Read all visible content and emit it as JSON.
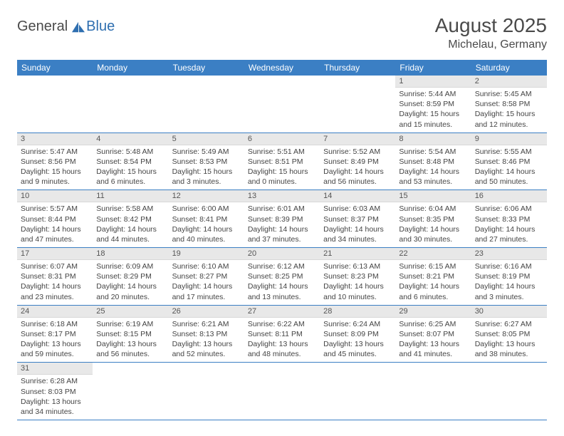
{
  "brand": {
    "part1": "General",
    "part2": "Blue"
  },
  "title": "August 2025",
  "location": "Michelau, Germany",
  "colors": {
    "header_bg": "#3b7fc4",
    "header_fg": "#ffffff",
    "daynum_bg": "#e8e8e8",
    "row_divider": "#3b7fc4",
    "text": "#444444",
    "logo_blue": "#2f6fb0"
  },
  "weekdays": [
    "Sunday",
    "Monday",
    "Tuesday",
    "Wednesday",
    "Thursday",
    "Friday",
    "Saturday"
  ],
  "weeks": [
    [
      null,
      null,
      null,
      null,
      null,
      {
        "n": "1",
        "sunrise": "5:44 AM",
        "sunset": "8:59 PM",
        "dl": "15 hours and 15 minutes."
      },
      {
        "n": "2",
        "sunrise": "5:45 AM",
        "sunset": "8:58 PM",
        "dl": "15 hours and 12 minutes."
      }
    ],
    [
      {
        "n": "3",
        "sunrise": "5:47 AM",
        "sunset": "8:56 PM",
        "dl": "15 hours and 9 minutes."
      },
      {
        "n": "4",
        "sunrise": "5:48 AM",
        "sunset": "8:54 PM",
        "dl": "15 hours and 6 minutes."
      },
      {
        "n": "5",
        "sunrise": "5:49 AM",
        "sunset": "8:53 PM",
        "dl": "15 hours and 3 minutes."
      },
      {
        "n": "6",
        "sunrise": "5:51 AM",
        "sunset": "8:51 PM",
        "dl": "15 hours and 0 minutes."
      },
      {
        "n": "7",
        "sunrise": "5:52 AM",
        "sunset": "8:49 PM",
        "dl": "14 hours and 56 minutes."
      },
      {
        "n": "8",
        "sunrise": "5:54 AM",
        "sunset": "8:48 PM",
        "dl": "14 hours and 53 minutes."
      },
      {
        "n": "9",
        "sunrise": "5:55 AM",
        "sunset": "8:46 PM",
        "dl": "14 hours and 50 minutes."
      }
    ],
    [
      {
        "n": "10",
        "sunrise": "5:57 AM",
        "sunset": "8:44 PM",
        "dl": "14 hours and 47 minutes."
      },
      {
        "n": "11",
        "sunrise": "5:58 AM",
        "sunset": "8:42 PM",
        "dl": "14 hours and 44 minutes."
      },
      {
        "n": "12",
        "sunrise": "6:00 AM",
        "sunset": "8:41 PM",
        "dl": "14 hours and 40 minutes."
      },
      {
        "n": "13",
        "sunrise": "6:01 AM",
        "sunset": "8:39 PM",
        "dl": "14 hours and 37 minutes."
      },
      {
        "n": "14",
        "sunrise": "6:03 AM",
        "sunset": "8:37 PM",
        "dl": "14 hours and 34 minutes."
      },
      {
        "n": "15",
        "sunrise": "6:04 AM",
        "sunset": "8:35 PM",
        "dl": "14 hours and 30 minutes."
      },
      {
        "n": "16",
        "sunrise": "6:06 AM",
        "sunset": "8:33 PM",
        "dl": "14 hours and 27 minutes."
      }
    ],
    [
      {
        "n": "17",
        "sunrise": "6:07 AM",
        "sunset": "8:31 PM",
        "dl": "14 hours and 23 minutes."
      },
      {
        "n": "18",
        "sunrise": "6:09 AM",
        "sunset": "8:29 PM",
        "dl": "14 hours and 20 minutes."
      },
      {
        "n": "19",
        "sunrise": "6:10 AM",
        "sunset": "8:27 PM",
        "dl": "14 hours and 17 minutes."
      },
      {
        "n": "20",
        "sunrise": "6:12 AM",
        "sunset": "8:25 PM",
        "dl": "14 hours and 13 minutes."
      },
      {
        "n": "21",
        "sunrise": "6:13 AM",
        "sunset": "8:23 PM",
        "dl": "14 hours and 10 minutes."
      },
      {
        "n": "22",
        "sunrise": "6:15 AM",
        "sunset": "8:21 PM",
        "dl": "14 hours and 6 minutes."
      },
      {
        "n": "23",
        "sunrise": "6:16 AM",
        "sunset": "8:19 PM",
        "dl": "14 hours and 3 minutes."
      }
    ],
    [
      {
        "n": "24",
        "sunrise": "6:18 AM",
        "sunset": "8:17 PM",
        "dl": "13 hours and 59 minutes."
      },
      {
        "n": "25",
        "sunrise": "6:19 AM",
        "sunset": "8:15 PM",
        "dl": "13 hours and 56 minutes."
      },
      {
        "n": "26",
        "sunrise": "6:21 AM",
        "sunset": "8:13 PM",
        "dl": "13 hours and 52 minutes."
      },
      {
        "n": "27",
        "sunrise": "6:22 AM",
        "sunset": "8:11 PM",
        "dl": "13 hours and 48 minutes."
      },
      {
        "n": "28",
        "sunrise": "6:24 AM",
        "sunset": "8:09 PM",
        "dl": "13 hours and 45 minutes."
      },
      {
        "n": "29",
        "sunrise": "6:25 AM",
        "sunset": "8:07 PM",
        "dl": "13 hours and 41 minutes."
      },
      {
        "n": "30",
        "sunrise": "6:27 AM",
        "sunset": "8:05 PM",
        "dl": "13 hours and 38 minutes."
      }
    ],
    [
      {
        "n": "31",
        "sunrise": "6:28 AM",
        "sunset": "8:03 PM",
        "dl": "13 hours and 34 minutes."
      },
      null,
      null,
      null,
      null,
      null,
      null
    ]
  ],
  "labels": {
    "sunrise": "Sunrise:",
    "sunset": "Sunset:",
    "daylight": "Daylight:"
  }
}
